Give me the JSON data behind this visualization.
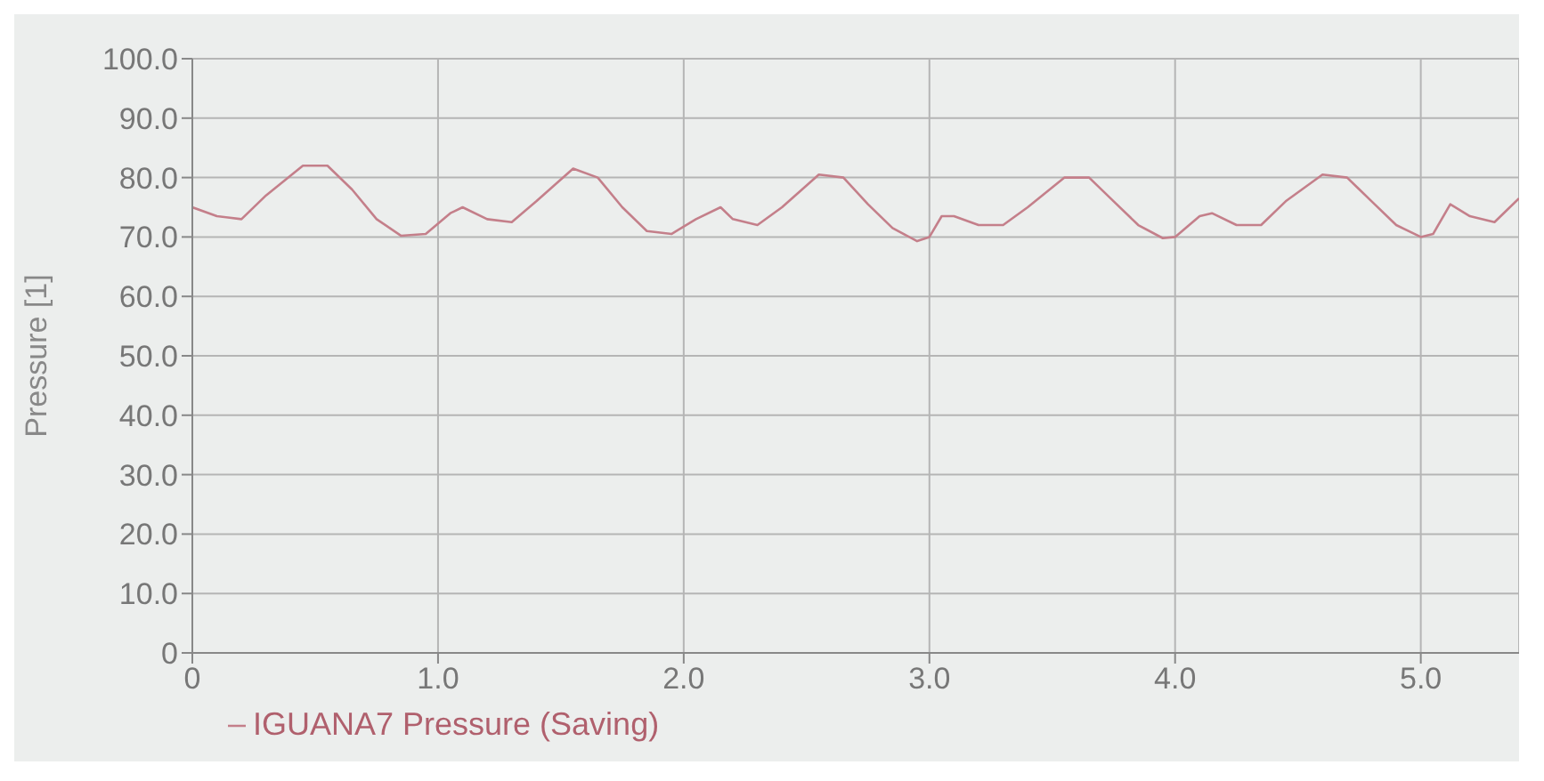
{
  "chart_data": {
    "type": "line",
    "ylabel": "Pressure [1]",
    "xlim": [
      0,
      5.4
    ],
    "ylim": [
      0,
      100
    ],
    "xticks": [
      0,
      {
        "value": 1,
        "label": "1.0"
      },
      {
        "value": 2,
        "label": "2.0"
      },
      {
        "value": 3,
        "label": "3.0"
      },
      {
        "value": 4,
        "label": "4.0"
      },
      {
        "value": 5,
        "label": "5.0"
      }
    ],
    "yticks": [
      0,
      {
        "value": 10,
        "label": "10.0"
      },
      {
        "value": 20,
        "label": "20.0"
      },
      {
        "value": 30,
        "label": "30.0"
      },
      {
        "value": 40,
        "label": "40.0"
      },
      {
        "value": 50,
        "label": "50.0"
      },
      {
        "value": 60,
        "label": "60.0"
      },
      {
        "value": 70,
        "label": "70.0"
      },
      {
        "value": 80,
        "label": "80.0"
      },
      {
        "value": 90,
        "label": "90.0"
      },
      {
        "value": 100,
        "label": "100.0"
      }
    ],
    "grid": true,
    "legend": "bottom left",
    "marker": "none",
    "line_style": "solid",
    "series": [
      {
        "name": "IGUANA7 Pressure (Saving)",
        "color": "#c47f8a",
        "x": [
          0,
          0.1,
          0.2,
          0.3,
          0.45,
          0.55,
          0.65,
          0.75,
          0.85,
          0.95,
          1.05,
          1.1,
          1.2,
          1.3,
          1.4,
          1.55,
          1.65,
          1.75,
          1.85,
          1.95,
          2.05,
          2.15,
          2.2,
          2.3,
          2.4,
          2.55,
          2.65,
          2.75,
          2.85,
          2.95,
          3.0,
          3.05,
          3.1,
          3.2,
          3.3,
          3.4,
          3.55,
          3.65,
          3.75,
          3.85,
          3.95,
          4.0,
          4.1,
          4.15,
          4.25,
          4.35,
          4.45,
          4.6,
          4.7,
          4.8,
          4.9,
          5.0,
          5.05,
          5.12,
          5.2,
          5.3,
          5.4
        ],
        "values": [
          75,
          73.5,
          73,
          77,
          82,
          82,
          78,
          73,
          70.2,
          70.5,
          74,
          75,
          73,
          72.5,
          76,
          81.5,
          80,
          75,
          71,
          70.5,
          73,
          75,
          73,
          72,
          75,
          80.5,
          80,
          75.5,
          71.5,
          69.3,
          70,
          73.5,
          73.5,
          72,
          72,
          75,
          80,
          80,
          76,
          72,
          69.8,
          70,
          73.5,
          74,
          72,
          72,
          76,
          80.5,
          80,
          76,
          72,
          70,
          70.5,
          75.5,
          73.5,
          72.5,
          76.5
        ]
      }
    ]
  }
}
